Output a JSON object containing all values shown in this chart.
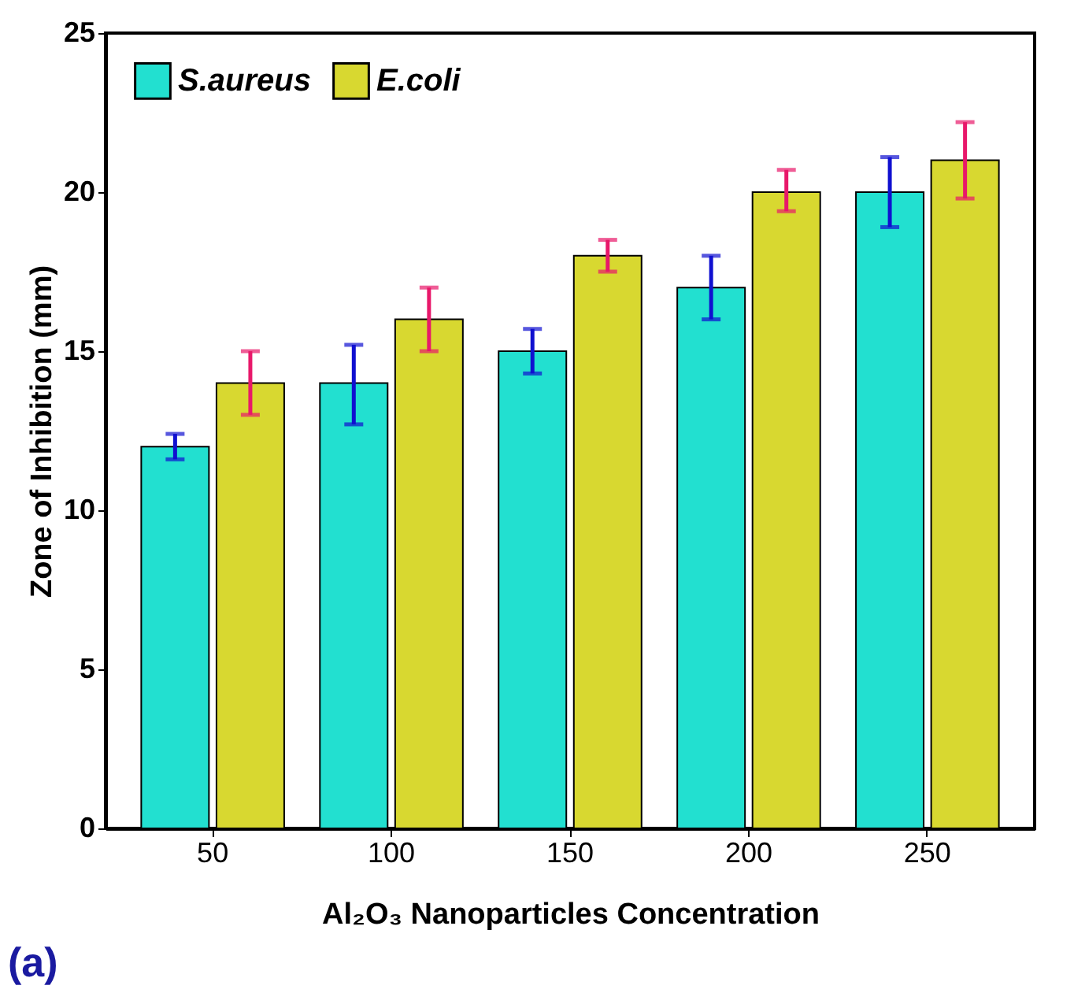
{
  "chart_data": {
    "type": "bar",
    "xlabel": "Al₂O₃ Nanoparticles Concentration",
    "ylabel": "Zone of Inhibition (mm)",
    "categories": [
      "50",
      "100",
      "150",
      "200",
      "250"
    ],
    "series": [
      {
        "name": "S.aureus",
        "color": "#22e0d0",
        "values": [
          12,
          14,
          15,
          17,
          20
        ],
        "errors": [
          [
            11.6,
            12.4
          ],
          [
            12.7,
            15.2
          ],
          [
            14.3,
            15.7
          ],
          [
            16,
            18
          ],
          [
            18.9,
            21.1
          ]
        ]
      },
      {
        "name": "E.coli",
        "color": "#d8d830",
        "values": [
          14,
          16,
          18,
          20,
          21
        ],
        "errors": [
          [
            13,
            15
          ],
          [
            15,
            17
          ],
          [
            17.5,
            18.5
          ],
          [
            19.4,
            20.7
          ],
          [
            19.8,
            22.2
          ]
        ]
      }
    ],
    "ylim": [
      0,
      25
    ],
    "yticks": [
      0,
      5,
      10,
      15,
      20,
      25
    ],
    "grid": false,
    "legend": "top left",
    "annotations": [
      "(a)"
    ]
  }
}
